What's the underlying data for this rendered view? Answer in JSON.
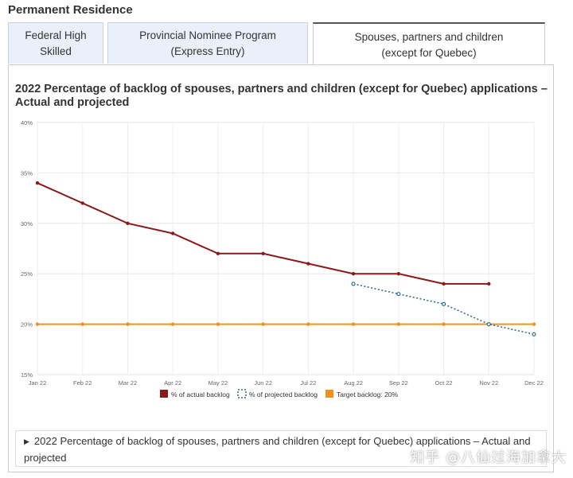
{
  "section_heading": "Permanent Residence",
  "tabs": [
    {
      "label": "Federal High\nSkilled",
      "active": false
    },
    {
      "label": "Provincial Nominee Program\n(Express Entry)",
      "active": false
    },
    {
      "label": "Spouses, partners and children\n(except for Quebec)",
      "active": true
    }
  ],
  "chart_data": {
    "type": "line",
    "title": "2022 Percentage of backlog of spouses, partners and children (except for Quebec) applications – Actual and projected",
    "categories": [
      "Jan 22",
      "Feb 22",
      "Mar 22",
      "Apr 22",
      "May 22",
      "Jun 22",
      "Jul 22",
      "Aug 22",
      "Sep 22",
      "Oct 22",
      "Nov 22",
      "Dec 22"
    ],
    "y_ticks": [
      "15%",
      "20%",
      "25%",
      "30%",
      "35%",
      "40%"
    ],
    "ylim": [
      15,
      40
    ],
    "y_step": 5,
    "series": [
      {
        "name": "% of actual backlog",
        "color": "#8b1a1a",
        "style": "solid",
        "values": [
          34,
          32,
          30,
          29,
          27,
          27,
          26,
          25,
          25,
          24,
          24,
          null
        ]
      },
      {
        "name": "% of projected backlog",
        "color": "#2e6f8e",
        "style": "dotted",
        "values": [
          null,
          null,
          null,
          null,
          null,
          null,
          null,
          24,
          23,
          22,
          20,
          19
        ]
      },
      {
        "name": "Target backlog: 20%",
        "color": "#f0901e",
        "style": "solid",
        "values": [
          20,
          20,
          20,
          20,
          20,
          20,
          20,
          20,
          20,
          20,
          20,
          20
        ]
      }
    ],
    "grid": true,
    "legend_position": "bottom-center"
  },
  "details": {
    "summary": "2022 Percentage of backlog of spouses, partners and children (except for Quebec) applications – Actual and projected"
  },
  "watermark": "知乎 @八仙过海加拿大"
}
